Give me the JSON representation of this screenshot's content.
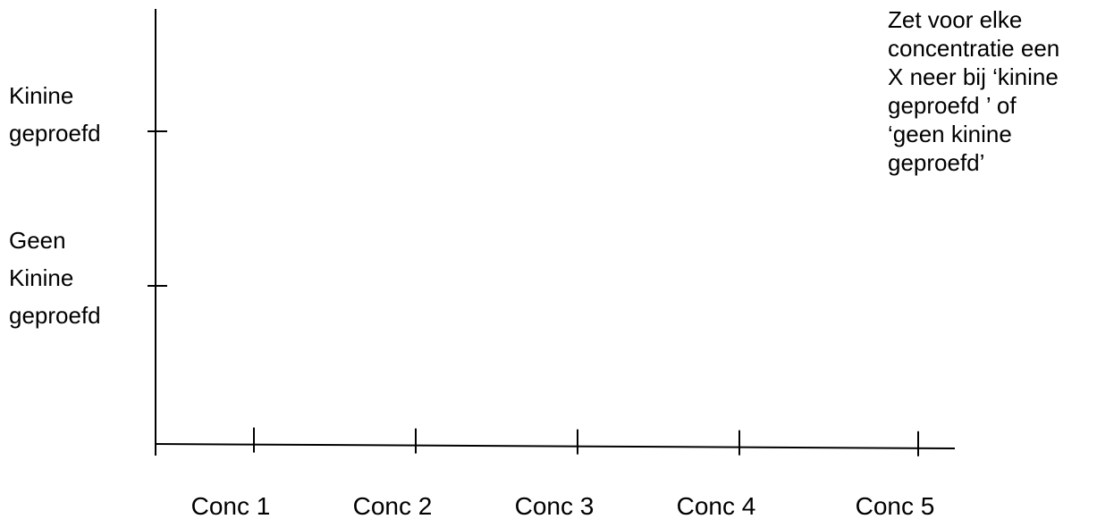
{
  "chart_data": {
    "type": "scatter",
    "categories": [
      "Conc 1",
      "Conc 2",
      "Conc 3",
      "Conc 4",
      "Conc 5"
    ],
    "y_categories": [
      {
        "label_lines": [
          "Kinine",
          "geproefd"
        ]
      },
      {
        "label_lines": [
          "Geen",
          "Kinine",
          "geproefd"
        ]
      }
    ],
    "series": [],
    "grid": false,
    "legend": "none"
  },
  "instructions": {
    "lines": [
      "Zet voor elke",
      "concentratie een",
      "X neer bij ‘kinine",
      "geproefd ’ of",
      "‘geen kinine",
      "geproefd’"
    ]
  },
  "colors": {
    "axis": "#000000",
    "text": "#000000",
    "background": "#ffffff"
  }
}
